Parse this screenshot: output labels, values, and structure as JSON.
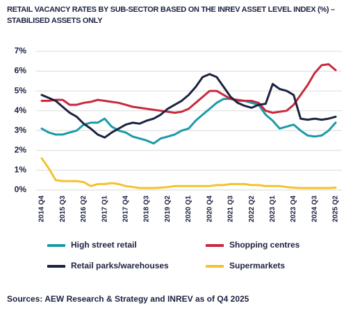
{
  "chart_data": {
    "type": "line",
    "title": "RETAIL VACANCY RATES BY SUB-SECTOR BASED ON THE INREV ASSET LEVEL INDEX (%) – STABILISED ASSETS ONLY",
    "source": "Sources: AEW Research & Strategy and INREV as of Q4 2025",
    "categories": [
      "2014 Q4",
      null,
      null,
      "2015 Q3",
      null,
      null,
      "2016 Q2",
      null,
      null,
      "2017 Q1",
      null,
      null,
      "2017 Q4",
      null,
      null,
      "2018 Q3",
      null,
      null,
      "2019 Q2",
      null,
      null,
      "2020 Q1",
      null,
      null,
      "2020 Q4",
      null,
      null,
      "2021 Q3",
      null,
      null,
      "2022 Q2",
      null,
      null,
      "2023 Q1",
      null,
      null,
      "2023 Q4",
      null,
      null,
      "2024 Q3",
      null,
      null,
      "2025 Q2"
    ],
    "ylim": [
      0,
      7
    ],
    "yticks": [
      {
        "value": 0,
        "label": "0%"
      },
      {
        "value": 1,
        "label": "1%"
      },
      {
        "value": 2,
        "label": "2%"
      },
      {
        "value": 3,
        "label": "3%"
      },
      {
        "value": 4,
        "label": "4%"
      },
      {
        "value": 5,
        "label": "5%"
      },
      {
        "value": 6,
        "label": "6%"
      },
      {
        "value": 7,
        "label": "7%"
      }
    ],
    "grid": true,
    "legend": "bottom",
    "series": [
      {
        "name": "High street retail",
        "color": "#1a9aa8",
        "values": [
          3.1,
          2.9,
          2.8,
          2.8,
          2.9,
          3.0,
          3.3,
          3.4,
          3.4,
          3.6,
          3.2,
          3.0,
          2.9,
          2.7,
          2.6,
          2.5,
          2.35,
          2.6,
          2.7,
          2.8,
          3.0,
          3.1,
          3.5,
          3.8,
          4.1,
          4.4,
          4.6,
          4.6,
          4.5,
          4.5,
          4.4,
          4.3,
          3.8,
          3.5,
          3.1,
          3.2,
          3.3,
          3.0,
          2.75,
          2.7,
          2.75,
          3.0,
          3.4
        ]
      },
      {
        "name": "Shopping centres",
        "color": "#c8283c",
        "values": [
          4.5,
          4.5,
          4.55,
          4.55,
          4.3,
          4.3,
          4.4,
          4.45,
          4.55,
          4.5,
          4.45,
          4.4,
          4.3,
          4.2,
          4.15,
          4.1,
          4.05,
          4.0,
          3.95,
          3.9,
          3.95,
          4.1,
          4.4,
          4.7,
          5.0,
          5.0,
          4.8,
          4.6,
          4.55,
          4.5,
          4.5,
          4.4,
          4.0,
          3.9,
          3.95,
          4.0,
          4.3,
          4.8,
          5.3,
          5.9,
          6.3,
          6.35,
          6.05
        ]
      },
      {
        "name": "Retail parks/warehouses",
        "color": "#1b2140",
        "values": [
          4.8,
          4.65,
          4.5,
          4.2,
          3.9,
          3.7,
          3.35,
          3.1,
          2.8,
          2.65,
          2.9,
          3.1,
          3.3,
          3.4,
          3.35,
          3.5,
          3.6,
          3.8,
          4.1,
          4.3,
          4.5,
          4.8,
          5.2,
          5.7,
          5.85,
          5.7,
          5.2,
          4.7,
          4.4,
          4.25,
          4.15,
          4.3,
          4.35,
          5.35,
          5.1,
          5.0,
          4.8,
          3.6,
          3.55,
          3.6,
          3.55,
          3.6,
          3.7
        ]
      },
      {
        "name": "Supermarkets",
        "color": "#f5c12e",
        "values": [
          1.6,
          1.1,
          0.5,
          0.45,
          0.45,
          0.45,
          0.4,
          0.2,
          0.3,
          0.3,
          0.35,
          0.3,
          0.2,
          0.15,
          0.1,
          0.1,
          0.1,
          0.12,
          0.15,
          0.2,
          0.2,
          0.2,
          0.2,
          0.2,
          0.2,
          0.25,
          0.25,
          0.3,
          0.3,
          0.3,
          0.25,
          0.25,
          0.2,
          0.2,
          0.2,
          0.15,
          0.12,
          0.1,
          0.1,
          0.1,
          0.1,
          0.1,
          0.12
        ]
      }
    ]
  }
}
